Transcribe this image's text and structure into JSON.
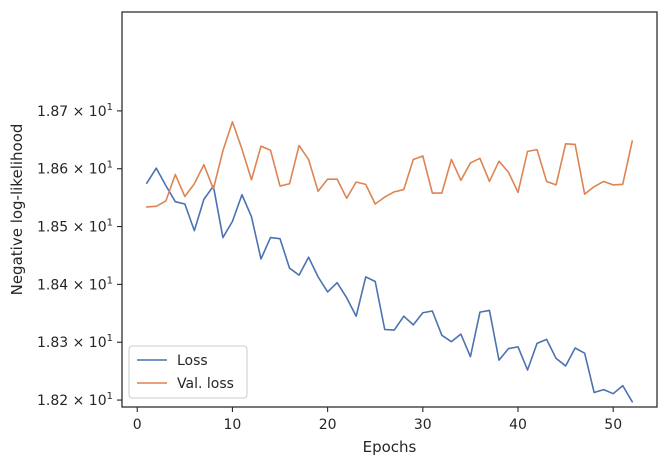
{
  "chart_data": {
    "type": "line",
    "xlabel": "Epochs",
    "ylabel": "Negative log-likelihood",
    "xlim": [
      -1.6,
      54.6
    ],
    "ylim": [
      18.188,
      18.871
    ],
    "xticks": [
      0,
      10,
      20,
      30,
      40,
      50
    ],
    "xtick_labels": [
      "0",
      "10",
      "20",
      "30",
      "40",
      "50"
    ],
    "yticks": [
      18.2,
      18.3,
      18.4,
      18.5,
      18.6,
      18.7
    ],
    "ytick_labels": [
      {
        "mantissa": "1.82",
        "base": "10",
        "exp": "1"
      },
      {
        "mantissa": "1.83",
        "base": "10",
        "exp": "1"
      },
      {
        "mantissa": "1.84",
        "base": "10",
        "exp": "1"
      },
      {
        "mantissa": "1.85",
        "base": "10",
        "exp": "1"
      },
      {
        "mantissa": "1.86",
        "base": "10",
        "exp": "1"
      },
      {
        "mantissa": "1.87",
        "base": "10",
        "exp": "1"
      }
    ],
    "ytick_times": "×",
    "grid": false,
    "legend_position": "lower-left",
    "x": [
      1,
      2,
      3,
      4,
      5,
      6,
      7,
      8,
      9,
      10,
      11,
      12,
      13,
      14,
      15,
      16,
      17,
      18,
      19,
      20,
      21,
      22,
      23,
      24,
      25,
      26,
      27,
      28,
      29,
      30,
      31,
      32,
      33,
      34,
      35,
      36,
      37,
      38,
      39,
      40,
      41,
      42,
      43,
      44,
      45,
      46,
      47,
      48,
      49,
      50,
      51,
      52
    ],
    "series": [
      {
        "name": "Loss",
        "color": "#4c72b0",
        "values": [
          18.575,
          18.601,
          18.571,
          18.543,
          18.539,
          18.493,
          18.547,
          18.57,
          18.481,
          18.509,
          18.555,
          18.517,
          18.444,
          18.481,
          18.479,
          18.428,
          18.416,
          18.447,
          18.413,
          18.387,
          18.403,
          18.377,
          18.345,
          18.413,
          18.405,
          18.322,
          18.321,
          18.345,
          18.33,
          18.351,
          18.354,
          18.312,
          18.301,
          18.314,
          18.275,
          18.352,
          18.355,
          18.269,
          18.289,
          18.292,
          18.252,
          18.298,
          18.305,
          18.272,
          18.259,
          18.29,
          18.281,
          18.213,
          18.218,
          18.211,
          18.225,
          18.197
        ]
      },
      {
        "name": "Val. loss",
        "color": "#dd8452",
        "values": [
          18.534,
          18.535,
          18.544,
          18.59,
          18.552,
          18.574,
          18.607,
          18.565,
          18.631,
          18.681,
          18.634,
          18.581,
          18.639,
          18.632,
          18.57,
          18.574,
          18.64,
          18.616,
          18.561,
          18.582,
          18.582,
          18.549,
          18.577,
          18.573,
          18.539,
          18.551,
          18.56,
          18.564,
          18.616,
          18.622,
          18.558,
          18.558,
          18.616,
          18.58,
          18.61,
          18.618,
          18.578,
          18.613,
          18.594,
          18.559,
          18.63,
          18.633,
          18.578,
          18.572,
          18.643,
          18.642,
          18.556,
          18.569,
          18.578,
          18.572,
          18.573,
          18.648
        ]
      }
    ]
  }
}
